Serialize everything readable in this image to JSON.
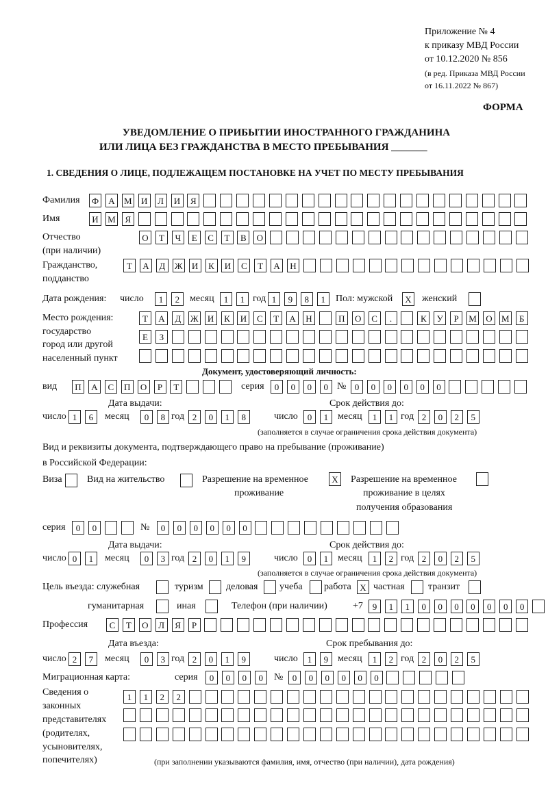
{
  "header": {
    "appendix": "Приложение № 4",
    "order": "к приказу МВД России",
    "order_date": "от 10.12.2020 № 856",
    "revision_1": "(в ред. Приказа МВД России",
    "revision_2": "от 16.11.2022 № 867)",
    "form_label": "ФОРМА"
  },
  "title": {
    "line1": "УВЕДОМЛЕНИЕ О ПРИБЫТИИ ИНОСТРАННОГО ГРАЖДАНИНА",
    "line2": "ИЛИ ЛИЦА БЕЗ ГРАЖДАНСТВА В МЕСТО ПРЕБЫВАНИЯ",
    "blank": "_______"
  },
  "section1": {
    "heading": "1. СВЕДЕНИЯ О ЛИЦЕ, ПОДЛЕЖАЩЕМ ПОСТАНОВКЕ НА УЧЕТ ПО МЕСТУ ПРЕБЫВАНИЯ",
    "labels": {
      "surname": "Фамилия",
      "name": "Имя",
      "patronymic_1": "Отчество",
      "patronymic_2": "(при наличии)",
      "citizenship_1": "Гражданство,",
      "citizenship_2": "подданство",
      "birth_date": "Дата рождения:",
      "day": "число",
      "month": "месяц",
      "year": "год",
      "sex": "Пол: мужской",
      "female": "женский",
      "birthplace_1": "Место рождения:",
      "birthplace_2": "государство",
      "birthplace_3": "город или другой",
      "birthplace_4": "населенный пункт",
      "id_doc": "Документ, удостоверяющий личность:",
      "kind": "вид",
      "series": "серия",
      "number": "№",
      "issue_date": "Дата выдачи:",
      "valid_until": "Срок действия до:",
      "validity_note": "(заполняется в случае ограничения срока действия документа)",
      "right_doc_1": "Вид и реквизиты документа, подтверждающего право на пребывание (проживание)",
      "right_doc_2": "в Российской Федерации:",
      "visa": "Виза",
      "residence_permit": "Вид на жительство",
      "temp_residence_1": "Разрешение на временное",
      "temp_residence_2": "проживание",
      "temp_edu_1": "Разрешение на временное",
      "temp_edu_2": "проживание в целях",
      "temp_edu_3": "получения образования",
      "purpose": "Цель въезда: служебная",
      "tourism": "туризм",
      "business": "деловая",
      "study": "учеба",
      "work": "работа",
      "private": "частная",
      "transit": "транзит",
      "humanitarian": "гуманитарная",
      "other": "иная",
      "phone": "Телефон (при наличии)",
      "phone_prefix": "+7",
      "profession": "Профессия",
      "entry_date": "Дата въезда:",
      "stay_until": "Срок пребывания до:",
      "migration_card": "Миграционная карта:",
      "reps_1": "Сведения о",
      "reps_2": "законных",
      "reps_3": "представителях",
      "reps_4": "(родителях,",
      "reps_5": "усыновителях,",
      "reps_6": "попечителях)",
      "reps_note": "(при заполнении указываются фамилия, имя, отчество (при наличии), дата рождения)"
    },
    "values": {
      "surname": "ФАМИЛИЯ",
      "name": "ИМЯ",
      "patronymic": "ОТЧЕСТВО",
      "citizenship": "ТАДЖИКИСТАН",
      "birth_day": "12",
      "birth_month": "11",
      "birth_year": "1981",
      "male": "X",
      "female": "",
      "birthplace_1": "ТАДЖИКИСТАН ПОС. КУРМОМБ",
      "birthplace_2": "ЕЗ",
      "birthplace_3": "",
      "id_kind": "ПАСПОРТ",
      "id_series": "0000",
      "id_number": "000000",
      "id_issue_day": "16",
      "id_issue_month": "08",
      "id_issue_year": "2018",
      "id_valid_day": "01",
      "id_valid_month": "11",
      "id_valid_year": "2025",
      "visa": "",
      "residence_permit": "",
      "temp_residence": "X",
      "temp_edu": "",
      "right_series": "00",
      "right_number": "000000",
      "right_issue_day": "01",
      "right_issue_month": "03",
      "right_issue_year": "2019",
      "right_valid_day": "01",
      "right_valid_month": "12",
      "right_valid_year": "2025",
      "purpose_official": "",
      "purpose_tourism": "",
      "purpose_business": "",
      "purpose_study": "",
      "purpose_work": "X",
      "purpose_private": "",
      "purpose_transit": "",
      "purpose_humanitarian": "",
      "purpose_other": "",
      "phone": "9110000000",
      "profession": "СТОЛЯР",
      "entry_day": "27",
      "entry_month": "03",
      "entry_year": "2019",
      "stay_day": "19",
      "stay_month": "12",
      "stay_year": "2025",
      "mig_series": "0000",
      "mig_number": "000000",
      "reps_1": "1122",
      "reps_2": "",
      "reps_3": ""
    }
  }
}
